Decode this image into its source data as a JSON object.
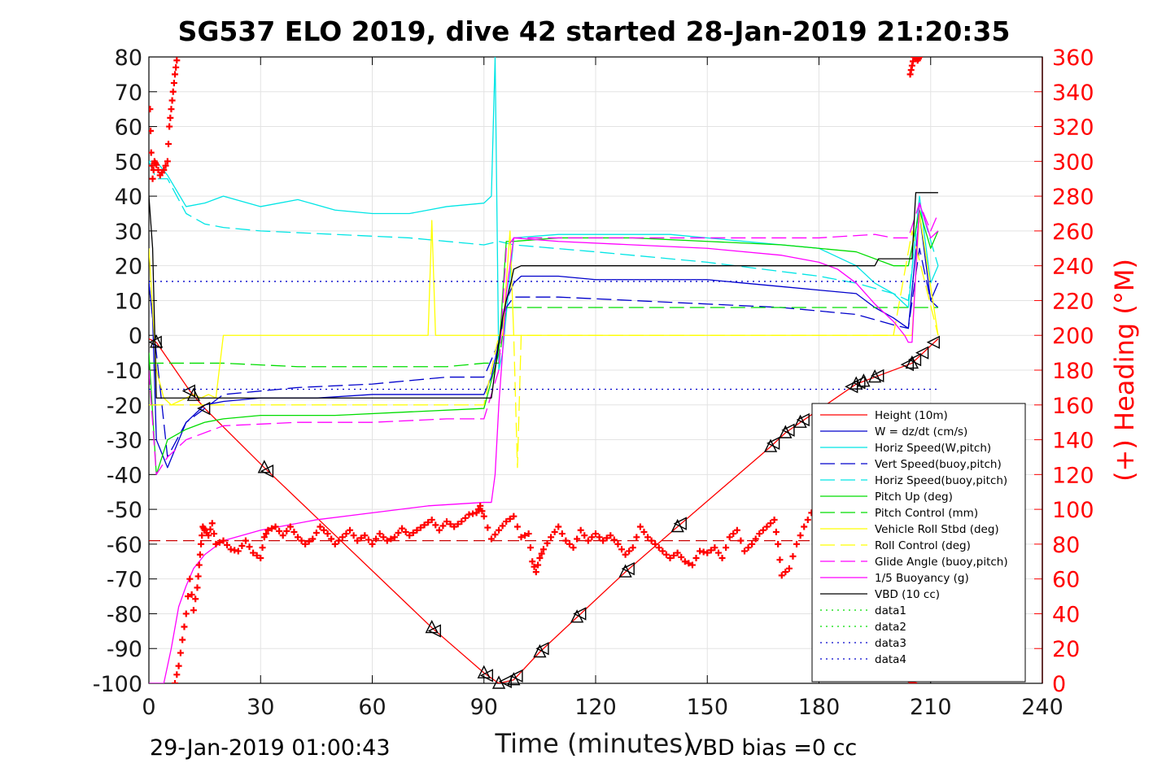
{
  "figure": {
    "title": "SG537 ELO 2019, dive 42 started 28-Jan-2019 21:20:35",
    "footer_left": "29-Jan-2019 01:00:43",
    "footer_right": "VBD bias =0 cc"
  },
  "chart_data": {
    "type": "line",
    "title": "SG537 ELO 2019, dive 42 started 28-Jan-2019 21:20:35",
    "xlabel": "Time (minutes)",
    "ylabel": "",
    "y2label": "(+) Heading (°M)",
    "xlim": [
      0,
      240
    ],
    "ylim": [
      -100,
      80
    ],
    "y2lim": [
      0,
      360
    ],
    "xticks": [
      0,
      30,
      60,
      90,
      120,
      150,
      180,
      210,
      240
    ],
    "yticks": [
      -100,
      -90,
      -80,
      -70,
      -60,
      -50,
      -40,
      -30,
      -20,
      -10,
      0,
      10,
      20,
      30,
      40,
      50,
      60,
      70,
      80
    ],
    "y2ticks": [
      0,
      20,
      40,
      60,
      80,
      100,
      120,
      140,
      160,
      180,
      200,
      220,
      240,
      260,
      280,
      300,
      320,
      340,
      360
    ],
    "grid": true,
    "legend_position": "lower-right",
    "colors": {
      "red": "#ff0000",
      "blue": "#0000cc",
      "cyan": "#00e5e5",
      "green": "#00dd00",
      "yellow": "#ffff00",
      "magenta": "#ff00ff",
      "black": "#000000",
      "heading": "#ff0000"
    },
    "series": [
      {
        "name": "Height (10m)",
        "color": "#ff0000",
        "dash": "",
        "x": [
          0,
          2,
          11,
          15,
          31,
          76,
          90,
          94,
          98,
          105,
          115,
          128,
          142,
          167,
          171,
          175,
          190,
          195,
          205,
          208,
          212
        ],
        "y": [
          -1,
          -2,
          -16,
          -21,
          -38,
          -84,
          -97,
          -100,
          -99,
          -91,
          -81,
          -68,
          -55,
          -32,
          -28,
          -25,
          -14,
          -12,
          -8,
          -5,
          -1
        ]
      },
      {
        "name": "W = dz/dt (cm/s)",
        "color": "#0000cc",
        "dash": "",
        "x": [
          0,
          1,
          2,
          5,
          10,
          15,
          20,
          30,
          45,
          60,
          75,
          90,
          92,
          94,
          96,
          98,
          100,
          110,
          120,
          130,
          140,
          150,
          160,
          170,
          180,
          190,
          195,
          200,
          204,
          207,
          210,
          212
        ],
        "y": [
          15,
          5,
          -30,
          -38,
          -25,
          -20,
          -19,
          -18,
          -18,
          -17,
          -17,
          -17,
          -12,
          -2,
          10,
          15,
          17,
          17,
          16,
          16,
          16,
          16,
          15,
          14,
          13,
          12,
          8,
          5,
          2,
          35,
          10,
          15
        ]
      },
      {
        "name": "Horiz Speed(W,pitch)",
        "color": "#00e5e5",
        "dash": "",
        "x": [
          0,
          2,
          5,
          10,
          15,
          20,
          30,
          40,
          50,
          60,
          70,
          80,
          90,
          92,
          93,
          94,
          95,
          98,
          110,
          120,
          140,
          160,
          180,
          190,
          195,
          200,
          204,
          207,
          210,
          212
        ],
        "y": [
          50,
          50,
          46,
          37,
          38,
          40,
          37,
          39,
          36,
          35,
          35,
          37,
          38,
          40,
          80,
          -10,
          -5,
          28,
          29,
          29,
          29,
          27,
          25,
          20,
          15,
          12,
          8,
          40,
          15,
          20
        ]
      },
      {
        "name": "Vert Speed(buoy,pitch)",
        "color": "#0000cc",
        "dash": "18,7",
        "x": [
          0,
          2,
          5,
          10,
          20,
          40,
          60,
          80,
          90,
          94,
          96,
          98,
          110,
          130,
          150,
          170,
          190,
          200,
          204,
          207,
          210,
          212
        ],
        "y": [
          15,
          -5,
          -35,
          -25,
          -17,
          -15,
          -14,
          -12,
          -12,
          -2,
          8,
          11,
          11,
          10,
          9,
          8,
          6,
          3,
          2,
          25,
          10,
          8
        ]
      },
      {
        "name": "Horiz Speed(buoy,pitch)",
        "color": "#00e5e5",
        "dash": "18,7",
        "x": [
          0,
          2,
          5,
          10,
          15,
          20,
          30,
          50,
          70,
          90,
          94,
          98,
          120,
          150,
          180,
          190,
          200,
          204,
          207,
          212
        ],
        "y": [
          50,
          45,
          45,
          35,
          32,
          31,
          30,
          29,
          28,
          26,
          27,
          26,
          24,
          21,
          17,
          15,
          12,
          10,
          38,
          20
        ]
      },
      {
        "name": "Pitch Up (deg)",
        "color": "#00dd00",
        "dash": "",
        "x": [
          0,
          2,
          5,
          10,
          15,
          20,
          30,
          50,
          70,
          90,
          94,
          96,
          98,
          110,
          130,
          150,
          170,
          190,
          200,
          204,
          207,
          210,
          212
        ],
        "y": [
          -5,
          -40,
          -30,
          -27,
          -25,
          -24,
          -23,
          -23,
          -22,
          -21,
          -5,
          27,
          27,
          28,
          28,
          27,
          26,
          24,
          20,
          20,
          36,
          25,
          30
        ]
      },
      {
        "name": "Pitch Control (mm)",
        "color": "#00dd00",
        "dash": "18,7",
        "x": [
          0,
          5,
          20,
          40,
          60,
          80,
          90,
          94,
          96,
          120,
          150,
          180,
          200,
          205,
          212
        ],
        "y": [
          -8,
          -8,
          -8,
          -9,
          -9,
          -9,
          -8,
          -8,
          8,
          8,
          8,
          8,
          8,
          8,
          8
        ]
      },
      {
        "name": "Vehicle Roll Stbd (deg)",
        "color": "#ffff00",
        "dash": "",
        "x": [
          0,
          2,
          4,
          6,
          8,
          10,
          12,
          14,
          16,
          18,
          20,
          30,
          45,
          60,
          75,
          76,
          77,
          78,
          90,
          93,
          94,
          95,
          97,
          98,
          100,
          115,
          130,
          150,
          170,
          180,
          190,
          200,
          205,
          207,
          212
        ],
        "y": [
          25,
          -10,
          -18,
          -20,
          -19,
          -18,
          -17,
          -18,
          -17,
          -18,
          0,
          0,
          0,
          0,
          0,
          33,
          0,
          0,
          0,
          0,
          0,
          0,
          30,
          0,
          0,
          0,
          0,
          0,
          0,
          0,
          0,
          0,
          0,
          35,
          0
        ]
      },
      {
        "name": "Roll Control (deg)",
        "color": "#ffff00",
        "dash": "18,7",
        "x": [
          0,
          5,
          20,
          40,
          60,
          80,
          90,
          94,
          96,
          98,
          99,
          100,
          120,
          150,
          180,
          190,
          200,
          205,
          212
        ],
        "y": [
          -20,
          -20,
          -20,
          -20,
          -20,
          -20,
          -20,
          0,
          0,
          0,
          -38,
          0,
          0,
          0,
          0,
          0,
          0,
          30,
          0
        ]
      },
      {
        "name": "Glide Angle (buoy,pitch)",
        "color": "#ff00ff",
        "dash": "18,7",
        "x": [
          0,
          2,
          5,
          10,
          20,
          40,
          60,
          80,
          90,
          94,
          96,
          98,
          120,
          150,
          180,
          195,
          200,
          204,
          207,
          210,
          212
        ],
        "y": [
          -10,
          -40,
          -35,
          -30,
          -26,
          -25,
          -25,
          -24,
          -24,
          -10,
          25,
          28,
          28,
          28,
          28,
          29,
          28,
          28,
          38,
          30,
          35
        ]
      },
      {
        "name": "1/5 Buoyancy (g)",
        "color": "#ff00ff",
        "dash": "",
        "x": [
          0,
          1,
          2,
          3,
          4,
          6,
          8,
          10,
          12,
          15,
          20,
          30,
          45,
          60,
          75,
          90,
          92,
          93,
          94,
          95,
          96,
          98,
          110,
          130,
          150,
          170,
          180,
          185,
          190,
          195,
          200,
          203,
          204,
          205,
          207,
          210,
          212
        ],
        "y": [
          -100,
          -100,
          -100,
          -100,
          -100,
          -90,
          -78,
          -72,
          -67,
          -63,
          -59,
          -56,
          -53,
          -51,
          -49,
          -48,
          -48,
          -40,
          -20,
          -5,
          12,
          28,
          27,
          26,
          25,
          23,
          21,
          19,
          15,
          9,
          4,
          0,
          -2,
          -2,
          38,
          28,
          30
        ]
      },
      {
        "name": "VBD (10 cc)",
        "color": "#000000",
        "dash": "",
        "x": [
          0,
          1,
          2,
          20,
          40,
          60,
          80,
          92,
          93,
          94,
          95,
          96,
          97,
          98,
          100,
          130,
          160,
          180,
          195,
          196,
          205,
          206,
          212
        ],
        "y": [
          40,
          25,
          -18,
          -18,
          -18,
          -18,
          -18,
          -18,
          -10,
          -2,
          5,
          10,
          14,
          19,
          20,
          20,
          20,
          20,
          20,
          22,
          22,
          41,
          41
        ]
      },
      {
        "name": "data1",
        "color": "#00dd00",
        "dash": "2,5",
        "x": [],
        "y": []
      },
      {
        "name": "data2",
        "color": "#00dd00",
        "dash": "2,5",
        "x": [],
        "y": []
      },
      {
        "name": "data3",
        "color": "#0000cc",
        "dash": "2,5",
        "x": [
          0,
          212
        ],
        "y": [
          15.5,
          15.5
        ]
      },
      {
        "name": "data4",
        "color": "#0000cc",
        "dash": "2,5",
        "x": [
          0,
          212
        ],
        "y": [
          -15.5,
          -15.5
        ]
      }
    ],
    "extra_lines": [
      {
        "color": "#cc0000",
        "dash": "14,7",
        "axis": "left",
        "x": [
          0,
          212
        ],
        "y": [
          -59,
          -59
        ]
      }
    ],
    "heading": {
      "name": "(+) Heading (°M)",
      "color": "#ff0000",
      "marker": "+",
      "segments": [
        {
          "x": [
            0.3,
            0.6,
            1.0,
            1.5,
            2.0,
            3.0,
            4.0,
            5.0,
            5.5,
            6.0,
            6.5,
            7.0,
            7.5
          ],
          "y": [
            330,
            305,
            290,
            300,
            298,
            292,
            295,
            300,
            320,
            330,
            340,
            350,
            358
          ]
        },
        {
          "x": [
            7.0,
            8.0,
            9.0,
            10.0,
            11.0,
            12.0,
            13.0,
            13.5,
            14.0,
            14.5,
            15.0,
            16.0,
            17.0,
            18.0,
            20.0,
            22.0,
            24.0,
            26.0,
            28.0,
            30.0,
            31.0,
            32.0,
            34.0,
            36.0,
            38.0,
            40.0,
            42.0,
            44.0,
            46.0,
            48.0,
            50.0,
            52.0,
            54.0,
            56.0,
            58.0,
            60.0,
            62.0,
            64.0,
            66.0,
            68.0,
            70.0,
            72.0,
            74.0,
            76.0,
            78.0,
            80.0,
            82.0,
            84.0,
            86.0,
            88.0,
            89.0,
            90.0,
            92.0,
            94.0,
            96.0,
            98.0,
            100.0,
            102.0,
            103.0,
            104.0,
            105.0,
            106.0,
            108.0,
            110.0,
            112.0,
            114.0,
            116.0,
            118.0,
            120.0,
            122.0,
            124.0,
            126.0,
            128.0,
            130.0,
            132.0,
            134.0,
            136.0,
            138.0,
            140.0,
            142.0,
            144.0,
            146.0,
            148.0,
            150.0,
            152.0,
            154.0,
            156.0,
            158.0,
            160.0,
            162.0,
            164.0,
            166.0,
            168.0,
            169.0,
            170.0,
            172.0,
            174.0,
            176.0,
            178.0
          ],
          "y": [
            0,
            10,
            25,
            40,
            60,
            42,
            55,
            68,
            80,
            90,
            88,
            85,
            92,
            80,
            82,
            77,
            76,
            82,
            75,
            72,
            84,
            88,
            90,
            85,
            90,
            84,
            80,
            83,
            90,
            86,
            80,
            84,
            88,
            82,
            85,
            80,
            86,
            82,
            84,
            89,
            85,
            88,
            91,
            94,
            88,
            93,
            90,
            93,
            97,
            98,
            102,
            96,
            83,
            88,
            93,
            96,
            84,
            86,
            70,
            64,
            72,
            77,
            84,
            90,
            82,
            78,
            88,
            82,
            86,
            82,
            85,
            80,
            74,
            78,
            90,
            84,
            80,
            76,
            72,
            75,
            70,
            68,
            76,
            75,
            78,
            72,
            84,
            88,
            76,
            80,
            86,
            90,
            94,
            80,
            62,
            66,
            80,
            90,
            98
          ]
        },
        {
          "x": [
            203.5,
            204.0,
            204.5,
            205.0,
            205.5,
            206.0,
            206.5,
            207.0
          ],
          "y": [
            8,
            5,
            2,
            0,
            0,
            3,
            6,
            10
          ]
        },
        {
          "x": [
            204.5,
            205.0,
            205.5,
            206.0,
            206.5,
            207.0
          ],
          "y": [
            350,
            355,
            360,
            360,
            358,
            360
          ]
        }
      ]
    },
    "markers": {
      "up_triangle_x": [
        2,
        12,
        31,
        76,
        90,
        94,
        98,
        105,
        115,
        128,
        142,
        167,
        171,
        175,
        190,
        192,
        195,
        205
      ],
      "left_triangle_x": [
        2,
        11,
        15,
        32,
        77,
        91,
        96,
        99,
        106,
        116,
        129,
        143,
        168,
        172,
        176,
        189,
        191,
        196,
        204,
        206,
        208,
        211
      ]
    }
  }
}
